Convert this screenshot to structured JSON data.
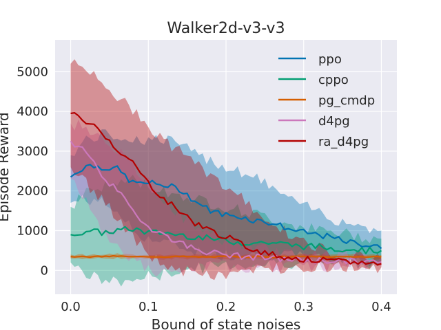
{
  "chart_data": {
    "type": "line",
    "title": "Walker2d-v3-v3",
    "xlabel": "Bound of state noises",
    "ylabel": "Episode Reward",
    "xlim": [
      -0.02,
      0.42
    ],
    "ylim": [
      -600,
      5800
    ],
    "xticks": [
      0.0,
      0.1,
      0.2,
      0.3,
      0.4
    ],
    "xtick_labels": [
      "0.0",
      "0.1",
      "0.2",
      "0.3",
      "0.4"
    ],
    "yticks": [
      0,
      1000,
      2000,
      3000,
      4000,
      5000
    ],
    "ytick_labels": [
      "0",
      "1000",
      "2000",
      "3000",
      "4000",
      "5000"
    ],
    "grid": true,
    "legend_position": "top-right",
    "background": "#eaeaf2",
    "series": [
      {
        "name": "ppo",
        "color": "#0173b2",
        "x": [
          0.0,
          0.02,
          0.04,
          0.06,
          0.08,
          0.1,
          0.12,
          0.14,
          0.16,
          0.18,
          0.2,
          0.22,
          0.24,
          0.26,
          0.28,
          0.3,
          0.32,
          0.34,
          0.36,
          0.38,
          0.4
        ],
        "y": [
          2350,
          2650,
          2600,
          2550,
          2200,
          2200,
          2150,
          2050,
          1750,
          1500,
          1400,
          1350,
          1250,
          1200,
          1050,
          950,
          900,
          800,
          700,
          650,
          550
        ],
        "lower": [
          1700,
          1800,
          1700,
          1500,
          1000,
          800,
          700,
          600,
          500,
          400,
          400,
          400,
          400,
          400,
          350,
          350,
          300,
          300,
          250,
          250,
          250
        ],
        "upper": [
          2900,
          3300,
          3400,
          3400,
          3300,
          3300,
          3300,
          3200,
          2900,
          2800,
          2600,
          2500,
          2300,
          2100,
          1800,
          1600,
          1500,
          1300,
          1200,
          1100,
          1000
        ]
      },
      {
        "name": "cppo",
        "color": "#029e73",
        "x": [
          0.0,
          0.02,
          0.04,
          0.06,
          0.08,
          0.1,
          0.12,
          0.14,
          0.16,
          0.18,
          0.2,
          0.22,
          0.24,
          0.26,
          0.28,
          0.3,
          0.32,
          0.34,
          0.36,
          0.38,
          0.4
        ],
        "y": [
          900,
          1000,
          950,
          1000,
          1050,
          950,
          950,
          900,
          850,
          800,
          750,
          700,
          700,
          700,
          650,
          600,
          600,
          550,
          550,
          500,
          500
        ],
        "lower": [
          200,
          -100,
          -250,
          -300,
          -250,
          -150,
          -100,
          0,
          50,
          100,
          150,
          150,
          150,
          200,
          200,
          200,
          200,
          200,
          200,
          200,
          200
        ],
        "upper": [
          1600,
          2000,
          2100,
          2200,
          2300,
          2100,
          2000,
          1900,
          1800,
          1700,
          1600,
          1500,
          1400,
          1300,
          1200,
          1100,
          1000,
          950,
          900,
          850,
          800
        ]
      },
      {
        "name": "pg_cmdp",
        "color": "#d55e00",
        "x": [
          0.0,
          0.02,
          0.04,
          0.06,
          0.08,
          0.1,
          0.12,
          0.14,
          0.16,
          0.18,
          0.2,
          0.22,
          0.24,
          0.26,
          0.28,
          0.3,
          0.32,
          0.34,
          0.36,
          0.38,
          0.4
        ],
        "y": [
          350,
          340,
          350,
          360,
          340,
          350,
          340,
          350,
          340,
          340,
          350,
          340,
          350,
          340,
          340,
          350,
          340,
          340,
          350,
          340,
          340
        ],
        "lower": [
          300,
          290,
          300,
          310,
          290,
          300,
          290,
          300,
          290,
          290,
          300,
          290,
          300,
          290,
          290,
          300,
          290,
          290,
          300,
          290,
          290
        ],
        "upper": [
          400,
          390,
          400,
          410,
          390,
          400,
          390,
          400,
          390,
          390,
          400,
          390,
          400,
          390,
          390,
          400,
          390,
          390,
          400,
          390,
          390
        ]
      },
      {
        "name": "d4pg",
        "color": "#cc78bc",
        "x": [
          0.0,
          0.02,
          0.04,
          0.06,
          0.08,
          0.1,
          0.12,
          0.14,
          0.16,
          0.18,
          0.2,
          0.22,
          0.24,
          0.26,
          0.28,
          0.3,
          0.32,
          0.34,
          0.36,
          0.38,
          0.4
        ],
        "y": [
          3250,
          3000,
          2400,
          2000,
          1500,
          1100,
          900,
          700,
          550,
          450,
          400,
          350,
          330,
          300,
          280,
          260,
          250,
          240,
          230,
          220,
          210
        ],
        "lower": [
          2300,
          1800,
          1000,
          600,
          300,
          0,
          -100,
          -50,
          50,
          100,
          100,
          100,
          100,
          100,
          100,
          100,
          100,
          100,
          100,
          100,
          100
        ],
        "upper": [
          3700,
          3600,
          3400,
          3000,
          2600,
          2200,
          1800,
          1400,
          1100,
          900,
          750,
          650,
          550,
          500,
          450,
          420,
          400,
          380,
          360,
          340,
          320
        ]
      },
      {
        "name": "ra_d4pg",
        "color": "#b30000",
        "x": [
          0.0,
          0.02,
          0.04,
          0.06,
          0.08,
          0.1,
          0.12,
          0.14,
          0.16,
          0.18,
          0.2,
          0.22,
          0.24,
          0.26,
          0.28,
          0.3,
          0.32,
          0.34,
          0.36,
          0.38,
          0.4
        ],
        "y": [
          3950,
          3750,
          3500,
          3050,
          2700,
          2200,
          1800,
          1500,
          1200,
          1000,
          850,
          650,
          500,
          400,
          330,
          280,
          250,
          230,
          210,
          190,
          170
        ],
        "lower": [
          2600,
          2200,
          1800,
          1300,
          800,
          400,
          150,
          0,
          -100,
          -150,
          -100,
          -50,
          0,
          50,
          100,
          100,
          100,
          100,
          100,
          100,
          80
        ],
        "upper": [
          5200,
          5100,
          4800,
          4400,
          4000,
          3600,
          3300,
          3000,
          2700,
          2400,
          2100,
          1800,
          1500,
          1200,
          900,
          700,
          550,
          450,
          400,
          350,
          300
        ]
      }
    ]
  }
}
